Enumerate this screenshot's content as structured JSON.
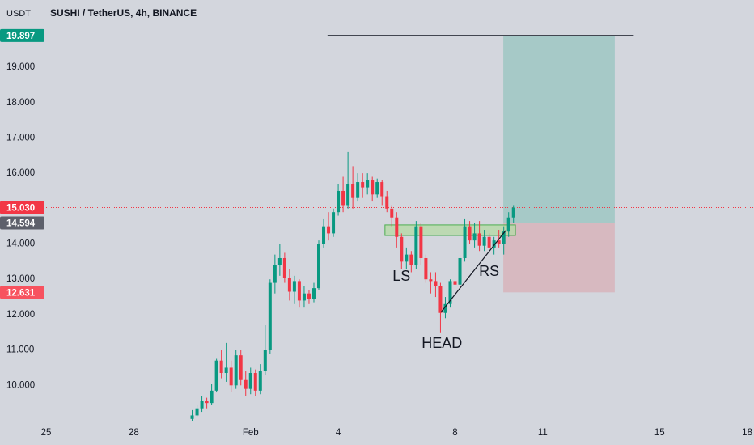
{
  "chart_data": {
    "type": "candlestick",
    "title": "SUSHI / TetherUS, 4h, BINANCE",
    "y_unit": "USDT",
    "up_color": "#089981",
    "down_color": "#f23645",
    "x": [
      30,
      31,
      32,
      33,
      34,
      35,
      36,
      37,
      38,
      39,
      40,
      41,
      42,
      43,
      44,
      45,
      46,
      47,
      48,
      49,
      50,
      51,
      52,
      53,
      54,
      55,
      56,
      57,
      58,
      59,
      60,
      61,
      62,
      63,
      64,
      65,
      66,
      67,
      68,
      69,
      70,
      71,
      72,
      73,
      74,
      75,
      76,
      77,
      78,
      79,
      80,
      81,
      82,
      83,
      84,
      85,
      86,
      87,
      88,
      89,
      90,
      91,
      92,
      93,
      94,
      95,
      96
    ],
    "ohlc": [
      [
        9.05,
        9.3,
        9.0,
        9.15
      ],
      [
        9.15,
        9.45,
        9.1,
        9.35
      ],
      [
        9.35,
        9.7,
        9.25,
        9.55
      ],
      [
        9.55,
        9.65,
        9.35,
        9.5
      ],
      [
        9.5,
        10.05,
        9.45,
        9.85
      ],
      [
        9.85,
        10.75,
        9.8,
        10.7
      ],
      [
        10.7,
        11.0,
        10.2,
        10.35
      ],
      [
        10.35,
        11.2,
        10.1,
        10.5
      ],
      [
        10.5,
        10.7,
        9.8,
        10.0
      ],
      [
        10.0,
        11.0,
        9.9,
        10.85
      ],
      [
        10.85,
        11.0,
        10.0,
        10.15
      ],
      [
        10.15,
        10.4,
        9.7,
        9.9
      ],
      [
        9.9,
        10.5,
        9.75,
        10.35
      ],
      [
        10.35,
        10.45,
        9.7,
        9.85
      ],
      [
        9.85,
        10.6,
        9.75,
        10.4
      ],
      [
        10.4,
        11.7,
        10.3,
        11.0
      ],
      [
        11.0,
        13.0,
        10.9,
        12.9
      ],
      [
        12.9,
        13.7,
        12.6,
        13.4
      ],
      [
        13.4,
        14.0,
        13.1,
        13.6
      ],
      [
        13.6,
        13.75,
        12.9,
        13.05
      ],
      [
        13.05,
        13.3,
        12.4,
        12.65
      ],
      [
        12.65,
        13.1,
        12.3,
        12.95
      ],
      [
        12.95,
        13.0,
        12.2,
        12.4
      ],
      [
        12.4,
        12.8,
        12.2,
        12.6
      ],
      [
        12.6,
        12.7,
        12.3,
        12.45
      ],
      [
        12.45,
        12.9,
        12.35,
        12.75
      ],
      [
        12.75,
        14.1,
        12.7,
        14.0
      ],
      [
        14.0,
        14.7,
        13.9,
        14.5
      ],
      [
        14.5,
        14.9,
        14.1,
        14.3
      ],
      [
        14.3,
        15.0,
        14.2,
        14.9
      ],
      [
        14.9,
        15.7,
        14.8,
        15.5
      ],
      [
        15.5,
        15.9,
        14.9,
        15.1
      ],
      [
        15.1,
        16.6,
        15.0,
        15.7
      ],
      [
        15.7,
        16.2,
        15.0,
        15.3
      ],
      [
        15.3,
        16.0,
        15.2,
        15.75
      ],
      [
        15.75,
        16.0,
        15.3,
        15.6
      ],
      [
        15.6,
        16.0,
        15.4,
        15.8
      ],
      [
        15.8,
        15.9,
        15.2,
        15.4
      ],
      [
        15.4,
        15.85,
        15.3,
        15.75
      ],
      [
        15.75,
        15.8,
        15.1,
        15.35
      ],
      [
        15.35,
        15.5,
        14.9,
        15.0
      ],
      [
        15.0,
        15.1,
        14.5,
        14.75
      ],
      [
        14.75,
        14.9,
        13.9,
        14.2
      ],
      [
        14.2,
        14.3,
        13.3,
        13.5
      ],
      [
        13.5,
        13.9,
        13.3,
        13.7
      ],
      [
        13.7,
        13.8,
        13.2,
        13.4
      ],
      [
        13.4,
        14.65,
        13.3,
        14.5
      ],
      [
        14.5,
        14.6,
        13.4,
        13.6
      ],
      [
        13.6,
        13.7,
        12.9,
        13.0
      ],
      [
        13.0,
        13.2,
        12.6,
        12.95
      ],
      [
        12.95,
        13.2,
        12.5,
        12.8
      ],
      [
        12.8,
        12.9,
        11.5,
        12.05
      ],
      [
        12.05,
        12.5,
        11.9,
        12.3
      ],
      [
        12.3,
        13.0,
        12.2,
        12.95
      ],
      [
        12.95,
        13.2,
        12.6,
        12.85
      ],
      [
        12.85,
        13.7,
        12.8,
        13.6
      ],
      [
        13.6,
        14.7,
        13.5,
        14.5
      ],
      [
        14.5,
        14.65,
        14.0,
        14.1
      ],
      [
        14.1,
        14.6,
        13.9,
        14.3
      ],
      [
        14.3,
        14.65,
        13.8,
        13.95
      ],
      [
        13.95,
        14.4,
        13.8,
        14.2
      ],
      [
        14.2,
        14.3,
        13.8,
        13.9
      ],
      [
        13.9,
        14.2,
        13.7,
        14.1
      ],
      [
        14.1,
        14.4,
        13.9,
        14.0
      ],
      [
        14.0,
        14.5,
        13.7,
        14.35
      ],
      [
        14.35,
        14.9,
        14.2,
        14.75
      ],
      [
        14.75,
        15.1,
        14.6,
        15.03
      ]
    ],
    "xlim": [
      0,
      145.4
    ],
    "xticks": [
      {
        "value": 0,
        "label": "25"
      },
      {
        "value": 18,
        "label": "28"
      },
      {
        "value": 42,
        "label": "Feb"
      },
      {
        "value": 60,
        "label": "4"
      },
      {
        "value": 84,
        "label": "8"
      },
      {
        "value": 102,
        "label": "11"
      },
      {
        "value": 126,
        "label": "15"
      },
      {
        "value": 144,
        "label": "18"
      }
    ],
    "ylim": [
      9,
      20.9
    ],
    "yticks": [
      {
        "value": 10,
        "label": "10.000"
      },
      {
        "value": 11,
        "label": "11.000"
      },
      {
        "value": 12,
        "label": "12.000"
      },
      {
        "value": 13,
        "label": "13.000"
      },
      {
        "value": 14,
        "label": "14.000"
      },
      {
        "value": 15,
        "label": "15.000"
      },
      {
        "value": 16,
        "label": "16.000"
      },
      {
        "value": 17,
        "label": "17.000"
      },
      {
        "value": 18,
        "label": "18.000"
      },
      {
        "value": 19,
        "label": "19.000"
      }
    ],
    "current_price": 15.03,
    "target_line": {
      "x": [
        57.8,
        120.7
      ],
      "value": 19.897
    },
    "position": {
      "x": [
        93.9,
        116.8
      ],
      "target": 19.897,
      "entry": 14.594,
      "stop": 12.631,
      "profit_color": "#a6c9c7",
      "loss_color": "#d7b9c0"
    },
    "zone": {
      "x": [
        69.6,
        96.4
      ],
      "range": [
        14.24,
        14.54
      ],
      "color": "#b7d9a8"
    },
    "trendline": {
      "x": [
        81.1,
        94.4
      ],
      "y": [
        12.07,
        14.38
      ]
    },
    "annotations": [
      {
        "text": "LS",
        "x": 73,
        "y": 13.07
      },
      {
        "text": "RS",
        "x": 91,
        "y": 13.21
      },
      {
        "text": "HEAD",
        "x": 81.3,
        "y": 11.17
      }
    ],
    "price_labels": [
      {
        "value": 19.897,
        "label": "19.897",
        "color": "#089981"
      },
      {
        "value": 15.03,
        "label": "15.030",
        "color": "#f23645"
      },
      {
        "value": 14.594,
        "label": "14.594",
        "color": "#5d606b"
      },
      {
        "value": 12.631,
        "label": "12.631",
        "color": "#f7525f"
      }
    ]
  }
}
